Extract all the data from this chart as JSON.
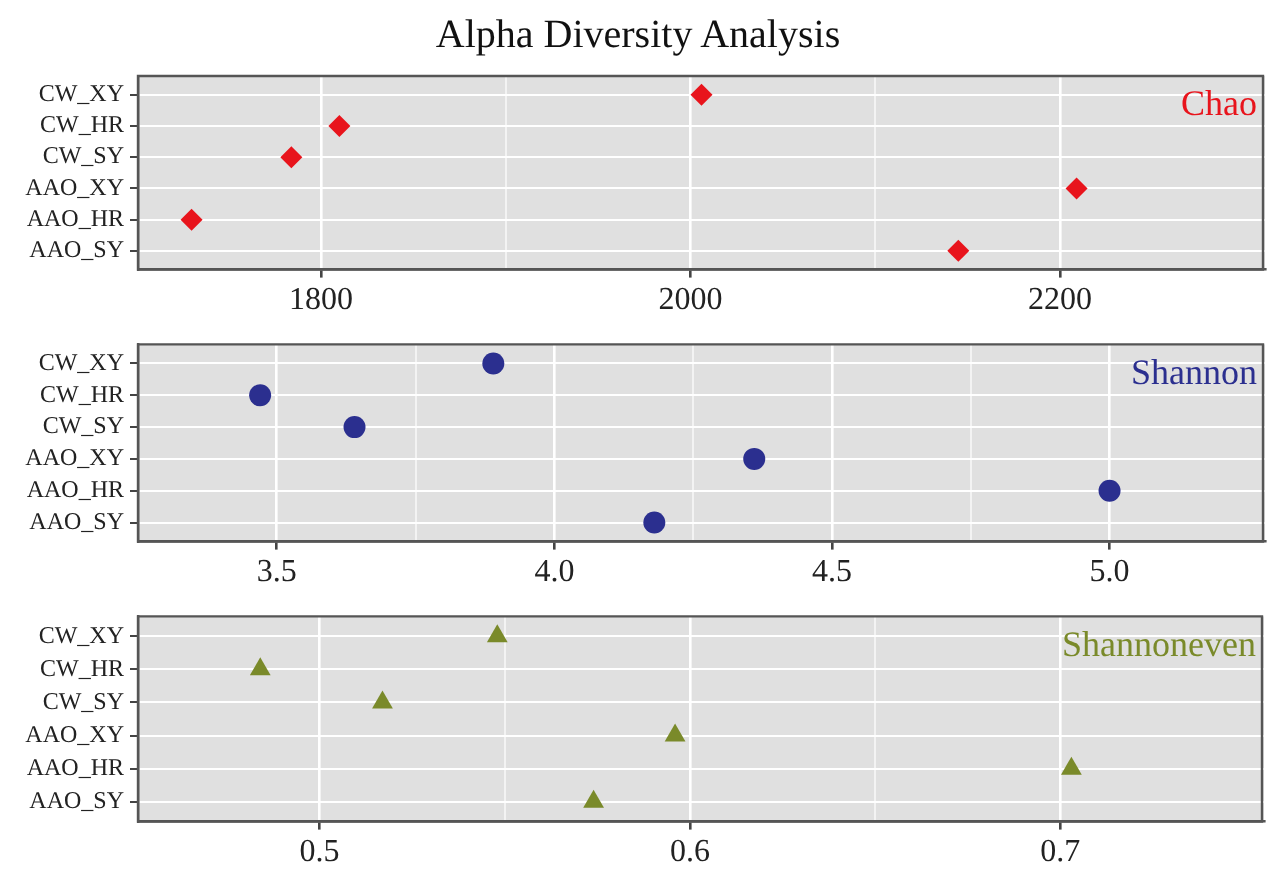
{
  "chart_data": [
    {
      "type": "scatter",
      "title": "Alpha Diversity Analysis",
      "orientation": "horizontal",
      "categories": [
        "CW_XY",
        "CW_HR",
        "CW_SY",
        "AAO_XY",
        "AAO_HR",
        "AAO_SY"
      ],
      "series": [
        {
          "name": "Chao",
          "color": "#e8141c",
          "values": [
            2006,
            1810,
            1784,
            2209,
            1730,
            2145
          ]
        }
      ],
      "xlim": [
        1701,
        2311
      ],
      "xticks": [
        1800,
        {
          "value": 1900,
          "label": null
        },
        2000,
        {
          "value": 2100,
          "label": null
        },
        2200
      ],
      "grid": true,
      "marker": "diamond"
    },
    {
      "type": "scatter",
      "orientation": "horizontal",
      "categories": [
        "CW_XY",
        "CW_HR",
        "CW_SY",
        "AAO_XY",
        "AAO_HR",
        "AAO_SY"
      ],
      "series": [
        {
          "name": "Shannon",
          "color": "#2b2f8f",
          "values": [
            3.89,
            3.47,
            3.64,
            4.36,
            5.0,
            4.18
          ]
        }
      ],
      "xlim": [
        3.25,
        5.28
      ],
      "xticks": [
        3.5,
        {
          "value": 3.75,
          "label": null
        },
        "4.0",
        {
          "value": 4.25,
          "label": null
        },
        4.5,
        {
          "value": 4.75,
          "label": null
        },
        "5.0"
      ],
      "grid": true,
      "marker": "circle"
    },
    {
      "type": "scatter",
      "orientation": "horizontal",
      "categories": [
        "CW_XY",
        "CW_HR",
        "CW_SY",
        "AAO_XY",
        "AAO_HR",
        "AAO_SY"
      ],
      "series": [
        {
          "name": "Shannoneven",
          "color": "#7a8a2a",
          "values": [
            0.548,
            0.484,
            0.517,
            0.596,
            0.703,
            0.574
          ]
        }
      ],
      "xlim": [
        0.451,
        0.755
      ],
      "xticks": [
        0.5,
        {
          "value": 0.55,
          "label": null
        },
        0.6,
        {
          "value": 0.65,
          "label": null
        },
        0.7
      ],
      "grid": true,
      "marker": "triangle"
    }
  ]
}
